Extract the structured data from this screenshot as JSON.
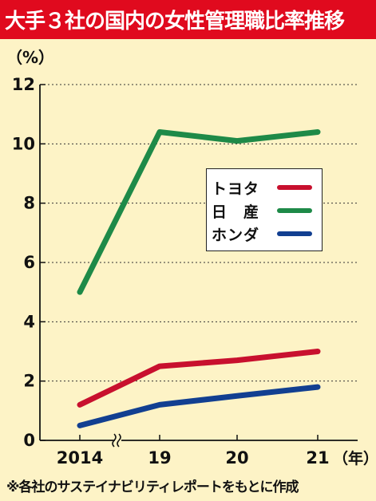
{
  "title": "大手３社の国内の女性管理職比率推移",
  "footer": "※各社のサステイナビリティレポートをもとに作成",
  "chart_data": {
    "type": "line",
    "ylabel": "（%）",
    "xunit": "（年）",
    "categories": [
      "2014",
      "19",
      "20",
      "21"
    ],
    "ylim": [
      0,
      12
    ],
    "yticks": [
      0,
      2,
      4,
      6,
      8,
      10,
      12
    ],
    "axis_break_after": "2014",
    "grid": "dashed-horizontal",
    "legend_position": "center-right",
    "series": [
      {
        "name": "トヨタ",
        "color": "#c8102e",
        "values": [
          1.2,
          2.5,
          2.7,
          3.0
        ]
      },
      {
        "name": "日　産",
        "color": "#1e8a48",
        "values": [
          5.0,
          10.4,
          10.1,
          10.4
        ]
      },
      {
        "name": "ホンダ",
        "color": "#123f91",
        "values": [
          0.5,
          1.2,
          1.5,
          1.8
        ]
      }
    ]
  }
}
